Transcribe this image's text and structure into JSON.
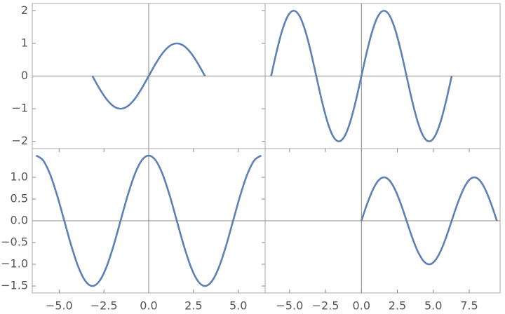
{
  "chart_data": [
    {
      "type": "line",
      "xlim": [
        -6.5,
        6.5
      ],
      "ylim": [
        -2.22,
        2.22
      ],
      "yticks": [
        2,
        1,
        0,
        {
          "value": -1,
          "label": "−1"
        },
        {
          "value": -2,
          "label": "−2"
        }
      ],
      "x": [
        -3.142,
        -2.749,
        -2.356,
        -1.963,
        -1.571,
        -1.178,
        -0.785,
        -0.393,
        0,
        0.393,
        0.785,
        1.178,
        1.571,
        1.963,
        2.356,
        2.749,
        3.142
      ],
      "series": [
        {
          "color": "#5e81b5",
          "values": [
            0,
            -0.383,
            -0.707,
            -0.924,
            -1,
            -0.924,
            -0.707,
            -0.383,
            0,
            0.383,
            0.707,
            0.924,
            1,
            0.924,
            0.707,
            0.383,
            0
          ]
        }
      ]
    },
    {
      "type": "line",
      "xlim": [
        -6.7,
        9.65
      ],
      "ylim": [
        -2.22,
        2.22
      ],
      "x": [
        -6.283,
        -5.89,
        -5.498,
        -5.105,
        -4.712,
        -4.32,
        -3.927,
        -3.534,
        -3.142,
        -2.749,
        -2.356,
        -1.963,
        -1.571,
        -1.178,
        -0.785,
        -0.393,
        0,
        0.393,
        0.785,
        1.178,
        1.571,
        1.963,
        2.356,
        2.749,
        3.142,
        3.534,
        3.927,
        4.32,
        4.712,
        5.105,
        5.498,
        5.89,
        6.283
      ],
      "series": [
        {
          "color": "#5e81b5",
          "values": [
            0,
            0.766,
            1.414,
            1.848,
            2,
            1.848,
            1.414,
            0.766,
            0,
            -0.766,
            -1.414,
            -1.848,
            -2,
            -1.848,
            -1.414,
            -0.766,
            0,
            0.766,
            1.414,
            1.848,
            2,
            1.848,
            1.414,
            0.766,
            0,
            -0.766,
            -1.414,
            -1.848,
            -2,
            -1.848,
            -1.414,
            -0.766,
            0
          ]
        }
      ]
    },
    {
      "type": "line",
      "xlim": [
        -6.5,
        6.5
      ],
      "ylim": [
        -1.66,
        1.66
      ],
      "xticks": [
        {
          "value": -5,
          "label": "−5.0"
        },
        {
          "value": -2.5,
          "label": "−2.5"
        },
        {
          "value": 0,
          "label": "0.0"
        },
        {
          "value": 2.5,
          "label": "2.5"
        },
        {
          "value": 5,
          "label": "5.0"
        }
      ],
      "yticks": [
        {
          "value": 1,
          "label": "1.0"
        },
        {
          "value": 0.5,
          "label": "0.5"
        },
        {
          "value": 0,
          "label": "0.0"
        },
        {
          "value": -0.5,
          "label": "−0.5"
        },
        {
          "value": -1,
          "label": "−1.0"
        },
        {
          "value": -1.5,
          "label": "−1.5"
        }
      ],
      "x": [
        -6.283,
        -5.89,
        -5.498,
        -5.105,
        -4.712,
        -4.32,
        -3.927,
        -3.534,
        -3.142,
        -2.749,
        -2.356,
        -1.963,
        -1.571,
        -1.178,
        -0.785,
        -0.393,
        0,
        0.393,
        0.785,
        1.178,
        1.571,
        1.963,
        2.356,
        2.749,
        3.142,
        3.534,
        3.927,
        4.32,
        4.712,
        5.105,
        5.498,
        5.89,
        6.283
      ],
      "series": [
        {
          "color": "#5e81b5",
          "values": [
            1.5,
            1.386,
            1.061,
            0.574,
            0,
            -0.574,
            -1.061,
            -1.386,
            -1.5,
            -1.386,
            -1.061,
            -0.574,
            0,
            0.574,
            1.061,
            1.386,
            1.5,
            1.386,
            1.061,
            0.574,
            0,
            -0.574,
            -1.061,
            -1.386,
            -1.5,
            -1.386,
            -1.061,
            -0.574,
            0,
            0.574,
            1.061,
            1.386,
            1.5
          ]
        }
      ]
    },
    {
      "type": "line",
      "xlim": [
        -6.7,
        9.65
      ],
      "ylim": [
        -1.66,
        1.66
      ],
      "xticks": [
        {
          "value": -5,
          "label": "−5.0"
        },
        {
          "value": -2.5,
          "label": "−2.5"
        },
        {
          "value": 0,
          "label": "0.0"
        },
        {
          "value": 2.5,
          "label": "2.5"
        },
        {
          "value": 5,
          "label": "5.0"
        },
        {
          "value": 7.5,
          "label": "7.5"
        }
      ],
      "x": [
        0,
        0.393,
        0.785,
        1.178,
        1.571,
        1.963,
        2.356,
        2.749,
        3.142,
        3.534,
        3.927,
        4.32,
        4.712,
        5.105,
        5.498,
        5.89,
        6.283,
        6.676,
        7.069,
        7.461,
        7.854,
        8.247,
        8.639,
        9.032,
        9.425
      ],
      "series": [
        {
          "color": "#5e81b5",
          "values": [
            0,
            0.383,
            0.707,
            0.924,
            1,
            0.924,
            0.707,
            0.383,
            0,
            -0.383,
            -0.707,
            -0.924,
            -1,
            -0.924,
            -0.707,
            -0.383,
            0,
            0.383,
            0.707,
            0.924,
            1,
            0.924,
            0.707,
            0.383,
            0
          ]
        }
      ]
    }
  ]
}
